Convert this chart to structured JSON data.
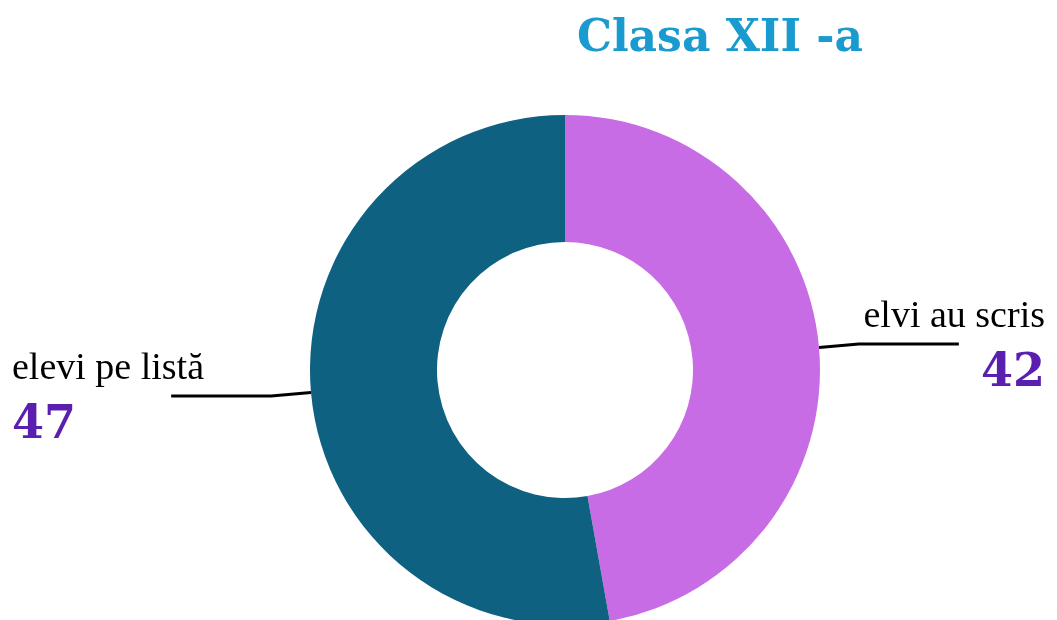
{
  "chart_data": {
    "type": "donut",
    "title": "Clasa XII -a",
    "categories": [
      "elvi au scris",
      "elevi pe listă"
    ],
    "values": [
      42,
      47
    ],
    "colors": [
      "#c86ce6",
      "#0e6180"
    ],
    "data_labels": true
  }
}
